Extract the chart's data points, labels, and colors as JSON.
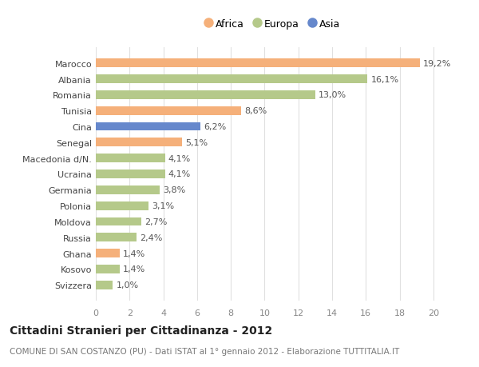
{
  "countries": [
    "Svizzera",
    "Kosovo",
    "Ghana",
    "Russia",
    "Moldova",
    "Polonia",
    "Germania",
    "Ucraina",
    "Macedonia d/N.",
    "Senegal",
    "Cina",
    "Tunisia",
    "Romania",
    "Albania",
    "Marocco"
  ],
  "values": [
    1.0,
    1.4,
    1.4,
    2.4,
    2.7,
    3.1,
    3.8,
    4.1,
    4.1,
    5.1,
    6.2,
    8.6,
    13.0,
    16.1,
    19.2
  ],
  "continents": [
    "Europa",
    "Europa",
    "Africa",
    "Europa",
    "Europa",
    "Europa",
    "Europa",
    "Europa",
    "Europa",
    "Africa",
    "Asia",
    "Africa",
    "Europa",
    "Europa",
    "Africa"
  ],
  "colors": {
    "Africa": "#F5B07A",
    "Europa": "#B5C98A",
    "Asia": "#6688CC"
  },
  "xlim": [
    0,
    21
  ],
  "xticks": [
    0,
    2,
    4,
    6,
    8,
    10,
    12,
    14,
    16,
    18,
    20
  ],
  "title": "Cittadini Stranieri per Cittadinanza - 2012",
  "subtitle": "COMUNE DI SAN COSTANZO (PU) - Dati ISTAT al 1° gennaio 2012 - Elaborazione TUTTITALIA.IT",
  "bar_height": 0.55,
  "bg_color": "#FFFFFF",
  "grid_color": "#E0E0E0",
  "label_fontsize": 8,
  "value_fontsize": 8,
  "title_fontsize": 10,
  "subtitle_fontsize": 7.5,
  "legend_fontsize": 9
}
